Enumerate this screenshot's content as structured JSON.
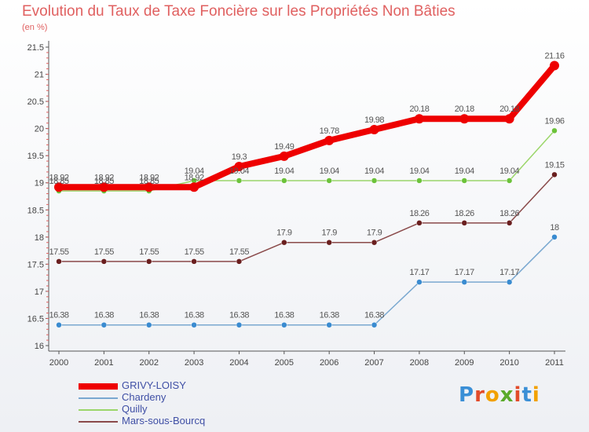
{
  "title": "Evolution du Taux de Taxe Foncière sur les Propriétés Non Bâties",
  "unit": "(en %)",
  "logo": "Proxiti",
  "logo_colors": [
    "#3a8fd6",
    "#e24b2a",
    "#f2a100",
    "#5aaa2a",
    "#e24b2a",
    "#3a8fd6",
    "#f2a100"
  ],
  "chart_data": {
    "type": "line",
    "title": "Evolution du Taux de Taxe Foncière sur les Propriétés Non Bâties",
    "ylabel": "(en %)",
    "xlabel": "",
    "categories": [
      "2000",
      "2001",
      "2002",
      "2003",
      "2004",
      "2005",
      "2006",
      "2007",
      "2008",
      "2009",
      "2010",
      "2011"
    ],
    "ylim": [
      16,
      21.5
    ],
    "yticks": [
      "16",
      "16.5",
      "17",
      "17.5",
      "18",
      "18.5",
      "19",
      "19.5",
      "20",
      "20.5",
      "21",
      "21.5"
    ],
    "grid": false,
    "legend": "bottom-left",
    "series": [
      {
        "name": "GRIVY-LOISY",
        "color": "#ee0000",
        "bold": true,
        "values": [
          18.92,
          18.92,
          18.92,
          18.92,
          19.3,
          19.49,
          19.78,
          19.98,
          20.18,
          20.18,
          20.18,
          21.16
        ],
        "labels": [
          "18.92",
          "18.92",
          "18.92",
          "18.92",
          "19.3",
          "19.49",
          "19.78",
          "19.98",
          "20.18",
          "20.18",
          "20.18",
          "21.16"
        ]
      },
      {
        "name": "Chardeny",
        "color": "#7aa8d0",
        "dot": "#3a8bd0",
        "values": [
          16.38,
          16.38,
          16.38,
          16.38,
          16.38,
          16.38,
          16.38,
          16.38,
          17.17,
          17.17,
          17.17,
          18
        ],
        "labels": [
          "16.38",
          "16.38",
          "16.38",
          "16.38",
          "16.38",
          "16.38",
          "16.38",
          "16.38",
          "17.17",
          "17.17",
          "17.17",
          "18"
        ]
      },
      {
        "name": "Quilly",
        "color": "#9bd66a",
        "dot": "#6cc23a",
        "values": [
          18.85,
          18.85,
          18.85,
          19.04,
          19.04,
          19.04,
          19.04,
          19.04,
          19.04,
          19.04,
          19.04,
          19.96
        ],
        "labels": [
          "18.85",
          "18.85",
          "18.85",
          "19.04",
          "19.04",
          "19.04",
          "19.04",
          "19.04",
          "19.04",
          "19.04",
          "19.04",
          "19.96"
        ]
      },
      {
        "name": "Mars-sous-Bourcq",
        "color": "#8a4a4a",
        "dot": "#6a1f1f",
        "values": [
          17.55,
          17.55,
          17.55,
          17.55,
          17.55,
          17.9,
          17.9,
          17.9,
          18.26,
          18.26,
          18.26,
          19.15
        ],
        "labels": [
          "17.55",
          "17.55",
          "17.55",
          "17.55",
          "17.55",
          "17.9",
          "17.9",
          "17.9",
          "18.26",
          "18.26",
          "18.26",
          "19.15"
        ]
      }
    ]
  }
}
